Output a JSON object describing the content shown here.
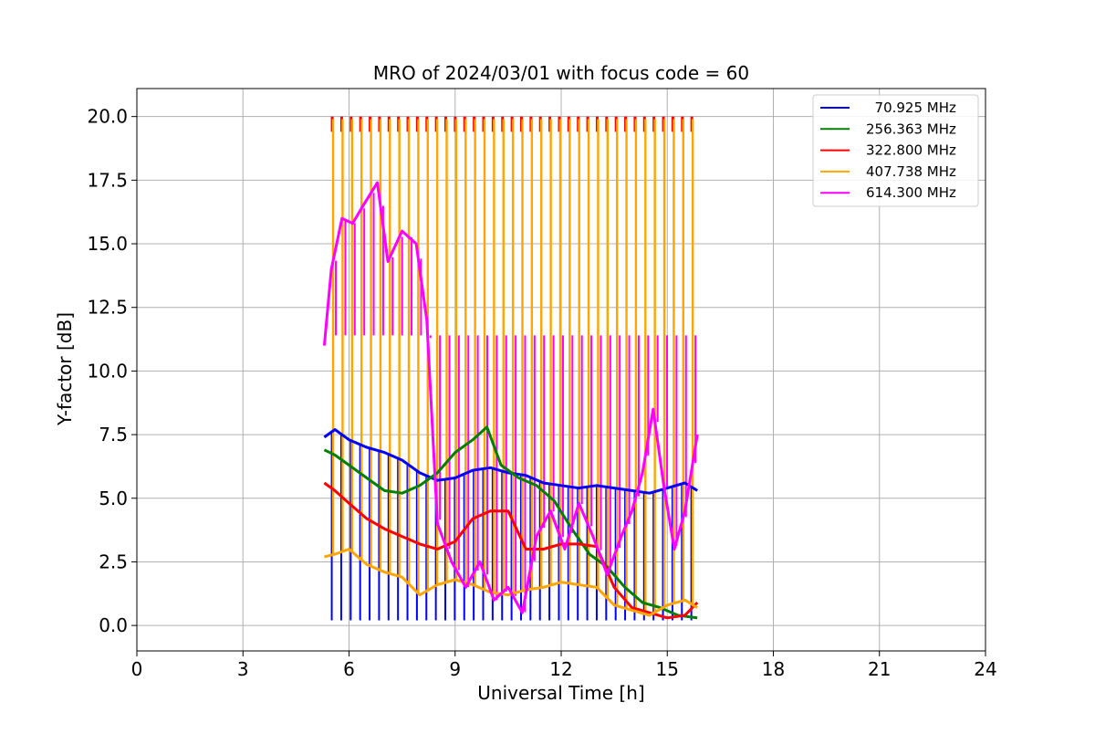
{
  "chart_data": {
    "type": "line",
    "title": "MRO of 2024/03/01 with focus code = 60",
    "xlabel": "Universal Time [h]",
    "ylabel": "Y-factor [dB]",
    "xlim": [
      0,
      24
    ],
    "ylim": [
      -1,
      21.1
    ],
    "xticks": [
      0,
      3,
      6,
      9,
      12,
      15,
      18,
      21,
      24
    ],
    "xtick_labels": [
      "0",
      "3",
      "6",
      "9",
      "12",
      "15",
      "18",
      "21",
      "24"
    ],
    "yticks": [
      0,
      2.5,
      5,
      7.5,
      10,
      12.5,
      15,
      17.5,
      20
    ],
    "ytick_labels": [
      "0.0",
      "2.5",
      "5.0",
      "7.5",
      "10.0",
      "12.5",
      "15.0",
      "17.5",
      "20.0"
    ],
    "grid": true,
    "legend_position": "top-right",
    "cycle_spikes": {
      "x_start": 5.55,
      "x_end": 15.72,
      "count": 39,
      "top_value": 20.0,
      "orange_plateau_value": 11.4,
      "blue_dip_value": 0.2
    },
    "series": [
      {
        "name": "  70.925 MHz",
        "color": "#0000ff",
        "x": [
          5.3,
          5.6,
          6.0,
          6.5,
          7.0,
          7.5,
          8.0,
          8.5,
          9.0,
          9.5,
          10.0,
          10.5,
          11.0,
          11.5,
          12.0,
          12.5,
          13.0,
          13.5,
          14.0,
          14.5,
          15.0,
          15.5,
          15.85
        ],
        "y": [
          7.4,
          7.7,
          7.3,
          7.0,
          6.8,
          6.5,
          6.0,
          5.7,
          5.8,
          6.1,
          6.2,
          6.0,
          5.9,
          5.6,
          5.5,
          5.4,
          5.5,
          5.4,
          5.3,
          5.2,
          5.4,
          5.6,
          5.3
        ]
      },
      {
        "name": "256.363 MHz",
        "color": "#008000",
        "x": [
          5.3,
          5.6,
          6.0,
          6.5,
          7.0,
          7.5,
          8.0,
          8.5,
          9.0,
          9.5,
          9.9,
          10.3,
          10.8,
          11.3,
          11.8,
          12.3,
          12.8,
          13.3,
          13.8,
          14.3,
          14.8,
          15.3,
          15.85
        ],
        "y": [
          6.9,
          6.7,
          6.3,
          5.8,
          5.3,
          5.2,
          5.5,
          6.0,
          6.8,
          7.3,
          7.8,
          6.3,
          5.8,
          5.5,
          4.9,
          3.8,
          2.8,
          2.3,
          1.5,
          0.9,
          0.7,
          0.4,
          0.3
        ]
      },
      {
        "name": "322.800 MHz",
        "color": "#ff0000",
        "x": [
          5.3,
          5.6,
          6.0,
          6.5,
          7.0,
          7.5,
          8.0,
          8.5,
          9.0,
          9.5,
          10.0,
          10.5,
          11.0,
          11.5,
          12.0,
          12.5,
          13.0,
          13.5,
          14.0,
          14.5,
          15.0,
          15.5,
          15.85
        ],
        "y": [
          5.6,
          5.3,
          4.8,
          4.2,
          3.8,
          3.5,
          3.2,
          3.0,
          3.3,
          4.2,
          4.5,
          4.5,
          3.0,
          3.0,
          3.2,
          3.2,
          3.1,
          1.5,
          0.7,
          0.5,
          0.3,
          0.4,
          0.9
        ]
      },
      {
        "name": "407.738 MHz",
        "color": "#ffa500",
        "x": [
          5.3,
          5.6,
          6.0,
          6.5,
          7.0,
          7.5,
          8.0,
          8.5,
          9.0,
          9.5,
          10.0,
          10.5,
          11.0,
          11.5,
          12.0,
          12.5,
          13.0,
          13.5,
          14.0,
          14.5,
          15.0,
          15.5,
          15.85
        ],
        "y": [
          2.7,
          2.8,
          3.0,
          2.4,
          2.1,
          1.9,
          1.2,
          1.6,
          1.8,
          1.6,
          1.3,
          1.2,
          1.4,
          1.5,
          1.7,
          1.6,
          1.5,
          0.8,
          0.6,
          0.4,
          0.8,
          1.0,
          0.7
        ]
      },
      {
        "name": "614.300 MHz",
        "color": "#ff00ff",
        "x": [
          5.3,
          5.5,
          5.8,
          6.1,
          6.4,
          6.8,
          7.1,
          7.5,
          7.9,
          8.2,
          8.5,
          8.9,
          9.3,
          9.7,
          10.1,
          10.5,
          10.9,
          11.3,
          11.7,
          12.1,
          12.5,
          12.9,
          13.3,
          13.7,
          14.0,
          14.3,
          14.6,
          14.9,
          15.2,
          15.5,
          15.85
        ],
        "y": [
          11.0,
          14.0,
          16.0,
          15.8,
          16.5,
          17.4,
          14.3,
          15.5,
          15.0,
          12.0,
          4.0,
          2.5,
          1.5,
          2.5,
          1.0,
          1.5,
          0.5,
          3.5,
          4.5,
          3.0,
          4.8,
          3.5,
          2.0,
          3.5,
          4.5,
          6.0,
          8.5,
          5.5,
          3.0,
          4.5,
          7.5
        ]
      }
    ]
  }
}
